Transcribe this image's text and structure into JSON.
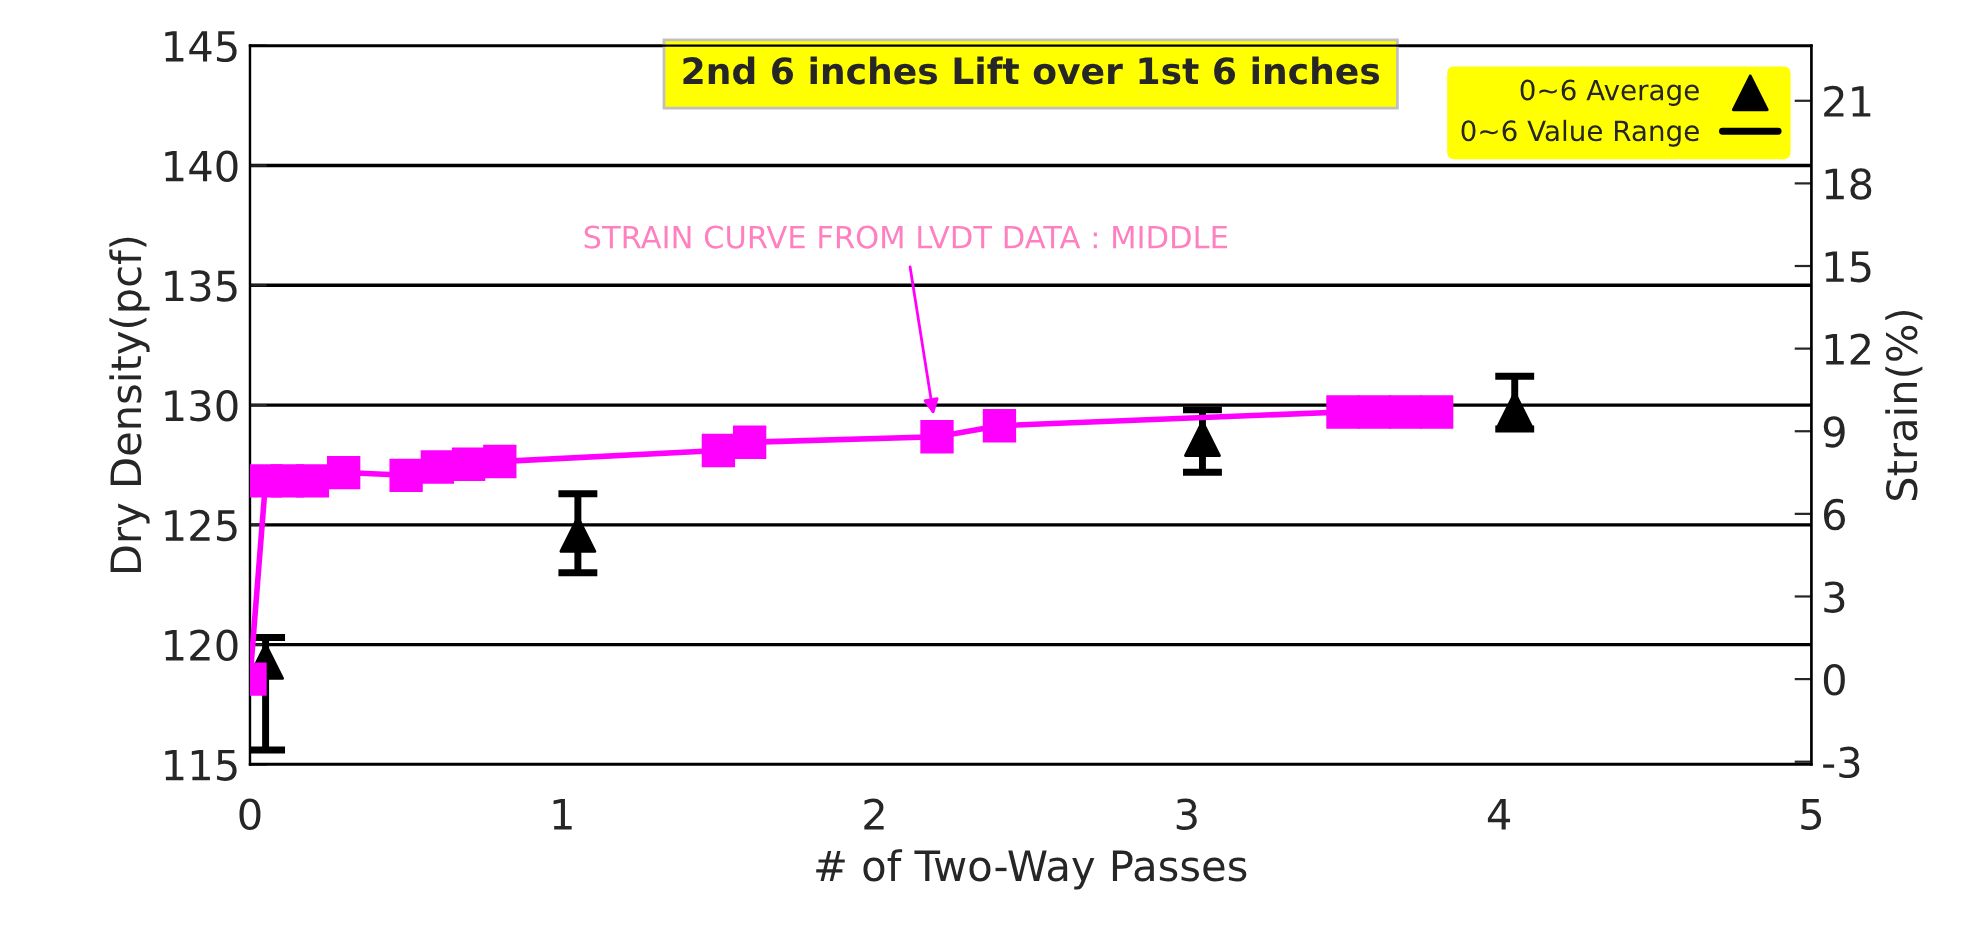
{
  "chart_data": {
    "type": "scatter",
    "title": "2nd 6 inches Lift over 1st 6 inches",
    "xlabel": "# of Two-Way Passes",
    "ylabel": "Dry Density(pcf)",
    "y2label": "Strain(%)",
    "xlim": [
      0,
      5
    ],
    "xticks": [
      0,
      1,
      2,
      3,
      4,
      5
    ],
    "ylim": [
      115,
      145
    ],
    "yticks": [
      115,
      120,
      125,
      130,
      135,
      140,
      145
    ],
    "y2lim": [
      -3.1,
      23
    ],
    "y2ticks": [
      -3,
      0,
      3,
      6,
      9,
      12,
      15,
      18,
      21
    ],
    "grid": "y",
    "legend": "top right",
    "annotations": [
      "STRAIN CURVE FROM LVDT DATA : MIDDLE",
      "0~6 Value Range"
    ],
    "series": [
      {
        "type": "line",
        "axis": "y2",
        "color": "#ff00ff",
        "marker": "square",
        "x": [
          0,
          0.05,
          0.12,
          0.2,
          0.3,
          0.5,
          0.6,
          0.7,
          0.8,
          1.5,
          1.6,
          2.2,
          2.4,
          3.5,
          3.6,
          3.7,
          3.8
        ],
        "values": [
          0,
          7.2,
          7.2,
          7.2,
          7.5,
          7.4,
          7.7,
          7.8,
          7.9,
          8.3,
          8.6,
          8.8,
          9.2,
          9.7,
          9.7,
          9.7,
          9.7
        ]
      },
      {
        "name": "0~6 Average",
        "color": "#000000",
        "marker": "triangle",
        "x": [
          0.05,
          1.05,
          3.05,
          4.05
        ],
        "values": [
          119.3,
          124.6,
          128.6,
          129.8
        ],
        "errors": [
          [
            115.6,
            120.3
          ],
          [
            123.0,
            126.3
          ],
          [
            127.2,
            129.8
          ],
          [
            129.0,
            131.2
          ]
        ]
      }
    ]
  }
}
